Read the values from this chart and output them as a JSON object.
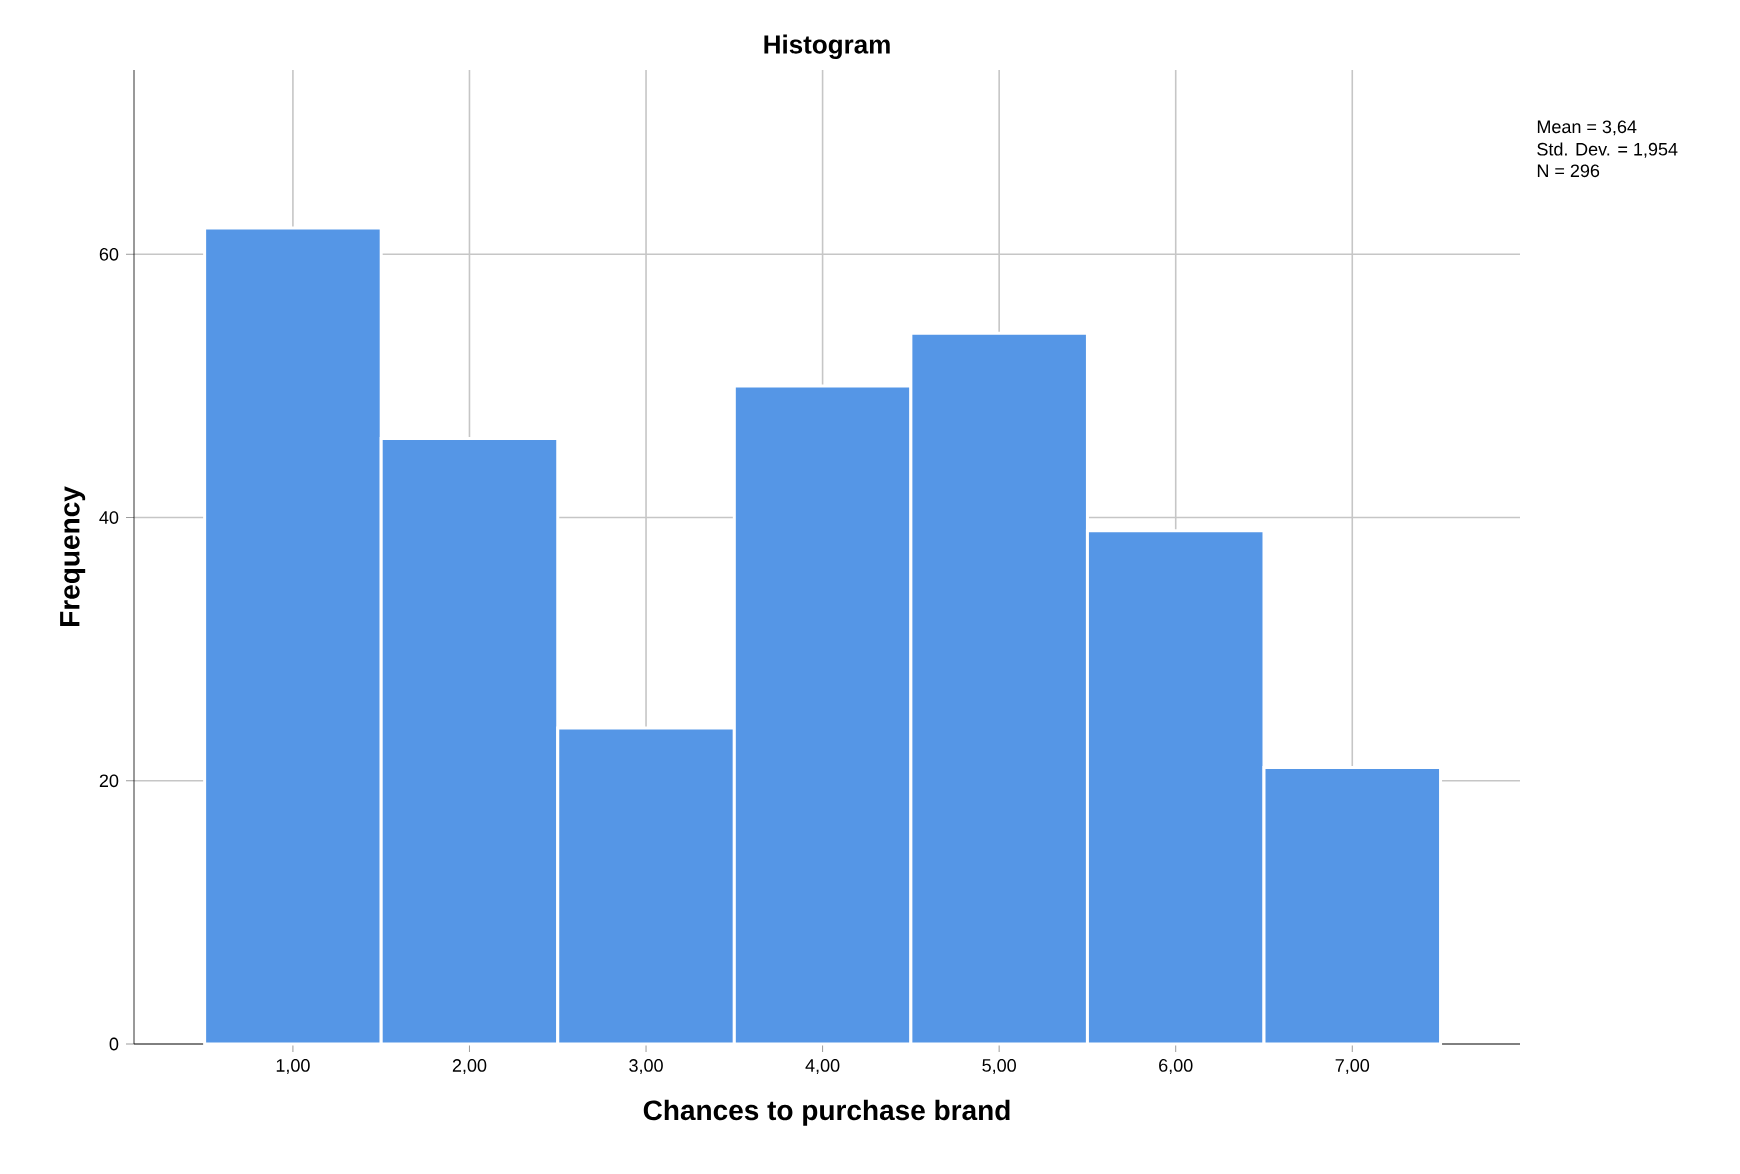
{
  "chart_data": {
    "type": "histogram",
    "title": "Histogram",
    "xlabel": "Chances to purchase brand",
    "ylabel": "Frequency",
    "bins": [
      0.5,
      1.5,
      2.5,
      3.5,
      4.5,
      5.5,
      6.5,
      7.5
    ],
    "values": [
      62,
      46,
      24,
      50,
      54,
      39,
      21
    ],
    "color": "#5596e6",
    "xlim": [
      0.1,
      7.95
    ],
    "ylim": [
      0,
      74
    ],
    "xticks": [
      {
        "value": 1,
        "label": "1,00"
      },
      {
        "value": 2,
        "label": "2,00"
      },
      {
        "value": 3,
        "label": "3,00"
      },
      {
        "value": 4,
        "label": "4,00"
      },
      {
        "value": 5,
        "label": "5,00"
      },
      {
        "value": 6,
        "label": "6,00"
      },
      {
        "value": 7,
        "label": "7,00"
      }
    ],
    "yticks": [
      0,
      20,
      40,
      60
    ],
    "grid": true,
    "annotations": [
      "Mean = 3,64",
      "Std. Dev. = 1,954",
      "N = 296"
    ]
  }
}
